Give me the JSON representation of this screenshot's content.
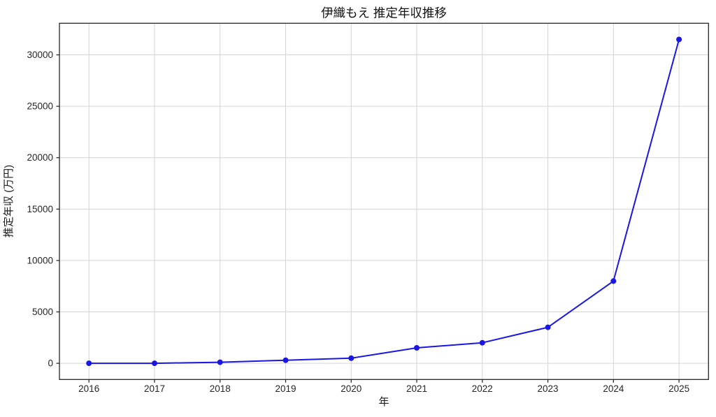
{
  "page": {
    "background": "#ffffff"
  },
  "chart_data": {
    "type": "line",
    "title": "伊織もえ 推定年収推移",
    "xlabel": "年",
    "ylabel": "推定年収 (万円)",
    "categories": [
      2016,
      2017,
      2018,
      2019,
      2020,
      2021,
      2022,
      2023,
      2024,
      2025
    ],
    "series": [
      {
        "name": "推定年収",
        "values": [
          0,
          0,
          100,
          300,
          500,
          1500,
          2000,
          3500,
          8000,
          31500
        ]
      }
    ],
    "xlim": [
      2015.55,
      2025.45
    ],
    "ylim": [
      -1575,
      33075
    ],
    "yticks": [
      0,
      5000,
      10000,
      15000,
      20000,
      25000,
      30000
    ],
    "grid": true,
    "legend": false,
    "colors": {
      "line": "#1a17e6",
      "marker": "#1a17e6",
      "grid": "#d4d4d4",
      "spine": "#262626",
      "tick": "#262626",
      "text": "#1a1a1a"
    }
  }
}
